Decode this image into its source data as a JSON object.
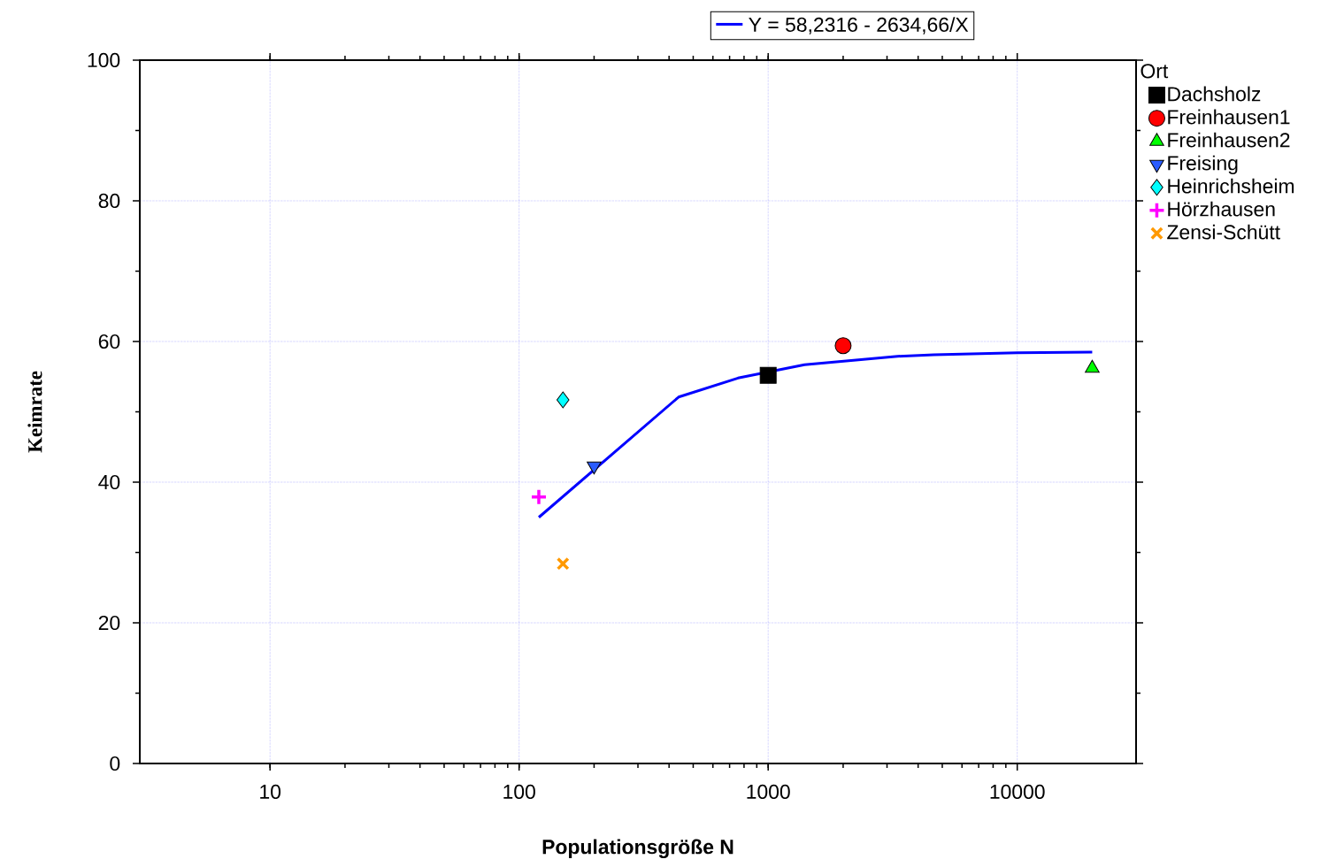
{
  "chart_data": {
    "type": "scatter",
    "xlabel": "Populationsgröße N",
    "ylabel": "Keimrate",
    "legend_title": "Ort",
    "log": "x",
    "xlim": [
      3,
      30000
    ],
    "ylim": [
      0,
      100
    ],
    "xticks": [
      10,
      100,
      1000,
      10000
    ],
    "yticks": [
      0,
      20,
      40,
      60,
      80,
      100
    ],
    "grid": true,
    "legend": "right",
    "series": [
      {
        "name": "Y = 58,2316 - 2634,66/X",
        "type": "line",
        "color": "#0000ff",
        "x": [
          120,
          437,
          757,
          1400,
          3310,
          4630,
          10000,
          20000
        ],
        "values": [
          35.0,
          52.1,
          54.8,
          56.7,
          57.9,
          58.1,
          58.4,
          58.5
        ]
      },
      {
        "name": "Dachsholz",
        "color": "#000000",
        "marker": "square",
        "x": [
          1000
        ],
        "values": [
          55.2
        ]
      },
      {
        "name": "Freinhausen1",
        "color": "#ff0000",
        "marker": "circle",
        "x": [
          2000
        ],
        "values": [
          59.4
        ]
      },
      {
        "name": "Freinhausen2",
        "color": "#00ff00",
        "marker": "triangle",
        "x": [
          20000
        ],
        "values": [
          56.2
        ]
      },
      {
        "name": "Freising",
        "color": "#2a5cff",
        "marker": "triangle-down",
        "x": [
          200
        ],
        "values": [
          42.3
        ]
      },
      {
        "name": "Heinrichsheim",
        "color": "#00ffff",
        "marker": "diamond",
        "x": [
          150
        ],
        "values": [
          51.7
        ]
      },
      {
        "name": "Hörzhausen",
        "color": "#ff00ff",
        "marker": "plus",
        "x": [
          120
        ],
        "values": [
          37.9
        ]
      },
      {
        "name": "Zensi-Schütt",
        "color": "#ff9900",
        "marker": "cross",
        "x": [
          150
        ],
        "values": [
          28.4
        ]
      }
    ]
  }
}
